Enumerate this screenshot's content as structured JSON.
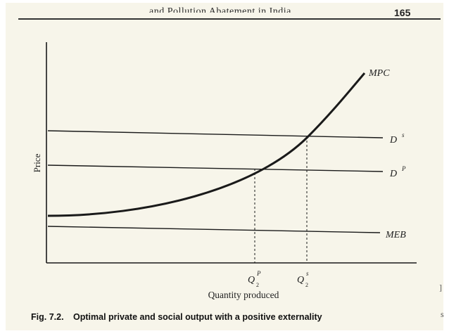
{
  "header": {
    "running_title": "...and Pollution Abatement in India",
    "page_number": "165"
  },
  "diagram": {
    "y_axis_label": "Price",
    "x_axis_label": "Quantity produced",
    "curves": {
      "mpc": "MPC",
      "ds": "D",
      "ds_sup": "s",
      "dp": "D",
      "dp_sup": "P",
      "meb": "MEB"
    },
    "quantities": {
      "q2p": "Q",
      "q2p_sup": "P",
      "q2p_sub": "2",
      "q2s": "Q",
      "q2s_sup": "s",
      "q2s_sub": "2"
    }
  },
  "caption": {
    "number": "Fig. 7.2.",
    "text": "Optimal private and social output with a positive externality"
  },
  "edge_marks": {
    "right_top": "]",
    "right_bottom": "s"
  }
}
